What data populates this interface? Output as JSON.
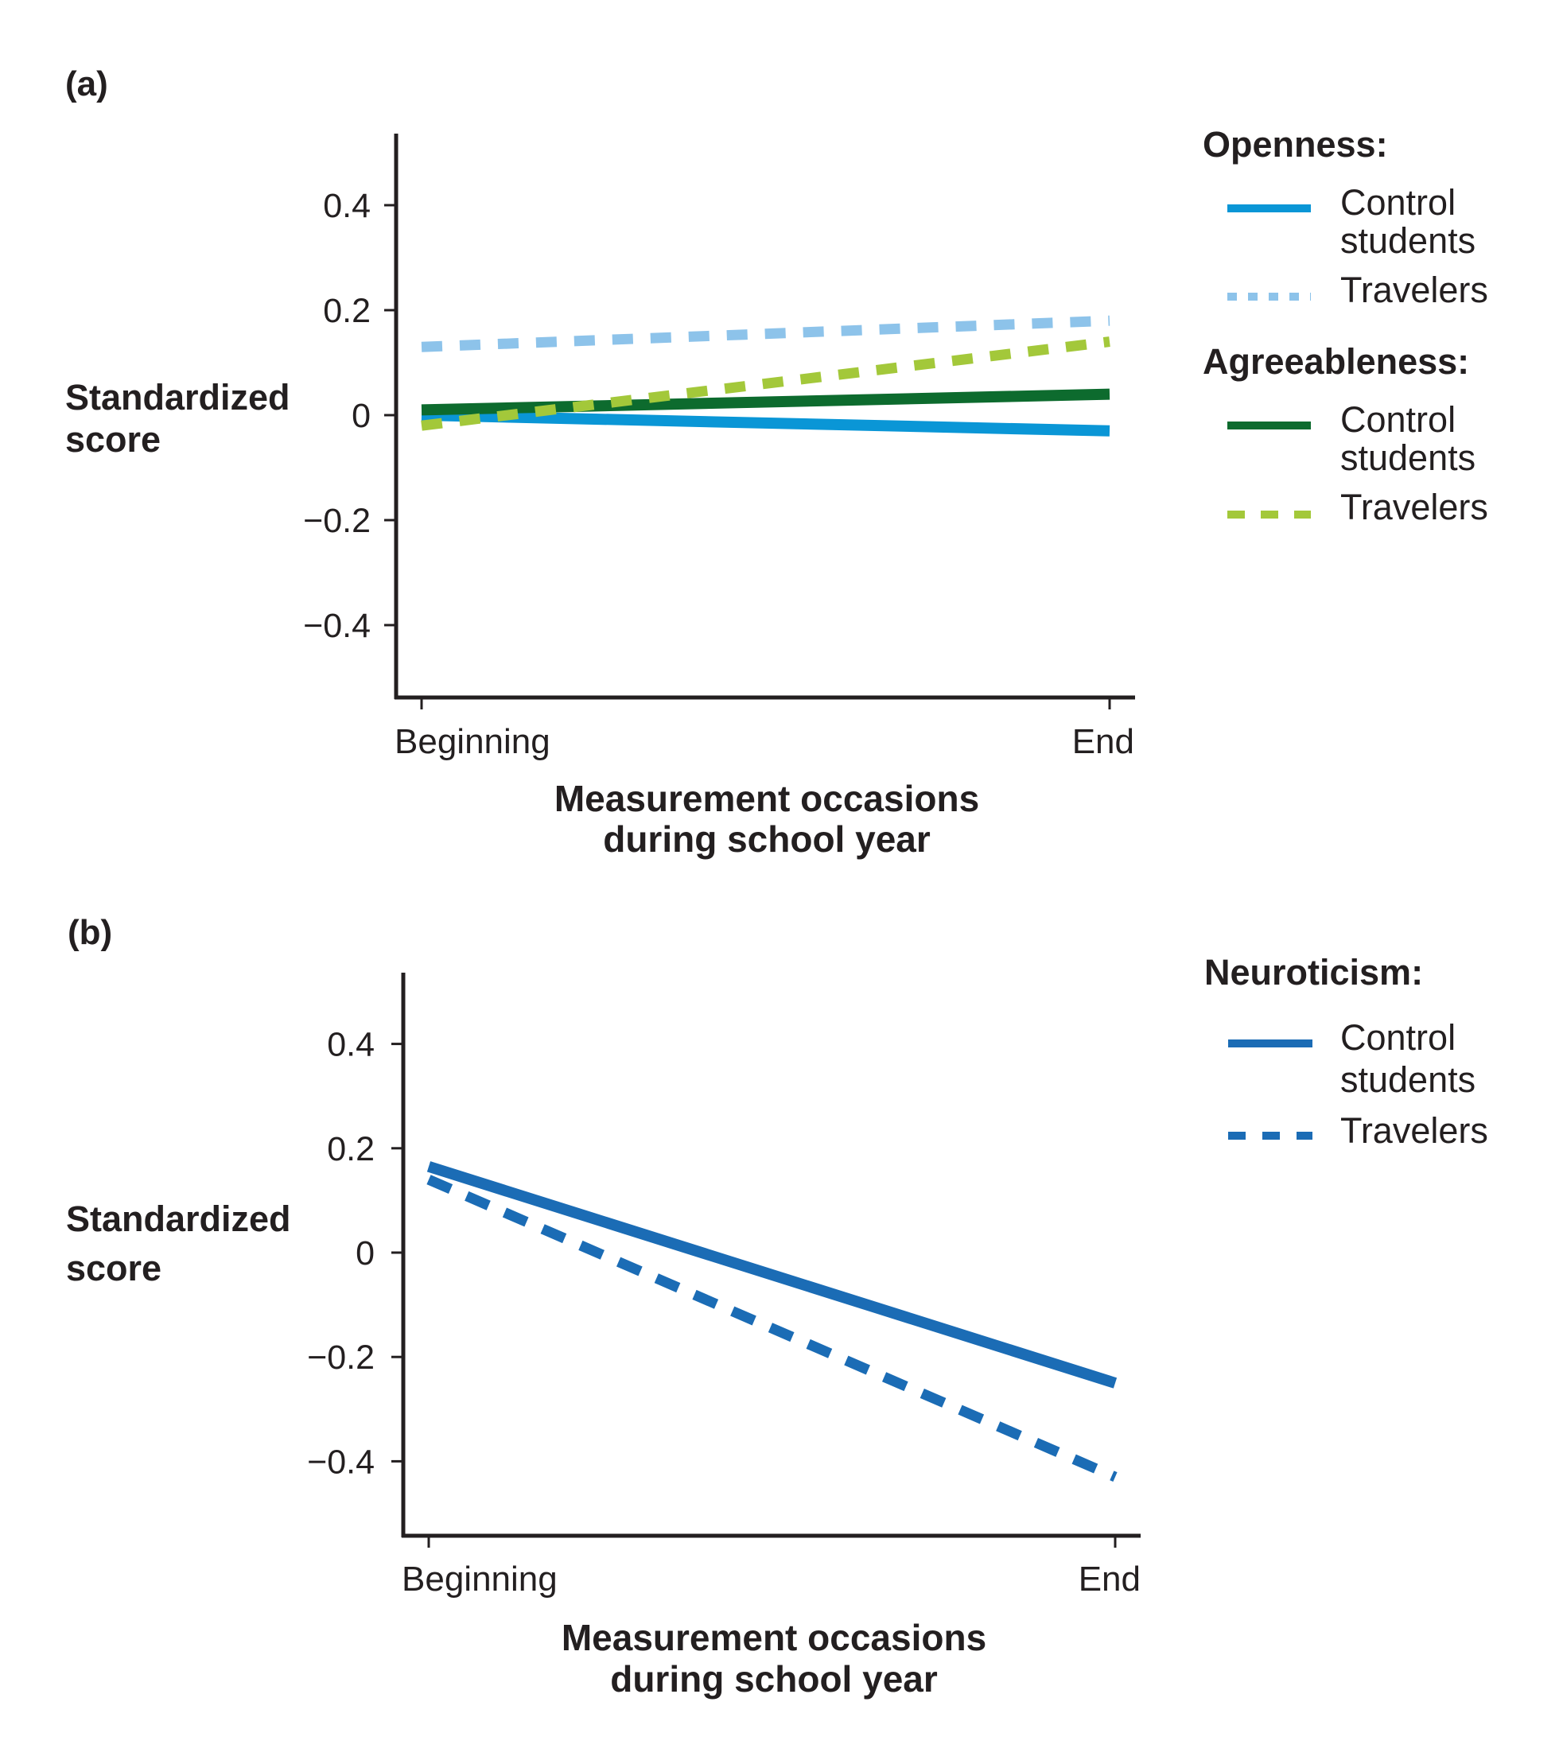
{
  "chart_data": [
    {
      "type": "line",
      "panel_label": "(a)",
      "title": "",
      "xlabel": [
        "Measurement occasions",
        "during school year"
      ],
      "ylabel": [
        "Standardized",
        "score"
      ],
      "categories": [
        "Beginning",
        "End"
      ],
      "yticks": [
        0.4,
        0.2,
        0,
        -0.2,
        -0.4
      ],
      "ytick_labels": [
        "0.4",
        "0.2",
        "0",
        "−0.2",
        "−0.4"
      ],
      "ylim": [
        -0.55,
        0.54
      ],
      "grid": false,
      "legend_position": "right",
      "legend_groups": [
        {
          "title": "Openness:",
          "items": [
            {
              "series": "openness_control",
              "label_lines": [
                "Control",
                "students"
              ]
            },
            {
              "series": "openness_travelers",
              "label_lines": [
                "Travelers"
              ]
            }
          ]
        },
        {
          "title": "Agreeableness:",
          "items": [
            {
              "series": "agreeableness_control",
              "label_lines": [
                "Control",
                "students"
              ]
            },
            {
              "series": "agreeableness_travelers",
              "label_lines": [
                "Travelers"
              ]
            }
          ]
        }
      ],
      "series": [
        {
          "id": "openness_control",
          "name": "Openness: Control students",
          "values": [
            0.0,
            -0.03
          ],
          "color": "#0a96d6",
          "style": "solid"
        },
        {
          "id": "openness_travelers",
          "name": "Openness: Travelers",
          "values": [
            0.13,
            0.18
          ],
          "color": "#8dc3ea",
          "style": "dashed"
        },
        {
          "id": "agreeableness_control",
          "name": "Agreeableness: Control students",
          "values": [
            0.01,
            0.04
          ],
          "color": "#0d6b2e",
          "style": "solid"
        },
        {
          "id": "agreeableness_travelers",
          "name": "Agreeableness: Travelers",
          "values": [
            -0.02,
            0.14
          ],
          "color": "#a3c83a",
          "style": "dashed"
        }
      ]
    },
    {
      "type": "line",
      "panel_label": "(b)",
      "title": "",
      "xlabel": [
        "Measurement occasions",
        "during school year"
      ],
      "ylabel": [
        "Standardized",
        "score"
      ],
      "categories": [
        "Beginning",
        "End"
      ],
      "yticks": [
        0.4,
        0.2,
        0,
        -0.2,
        -0.4
      ],
      "ytick_labels": [
        "0.4",
        "0.2",
        "0",
        "−0.2",
        "−0.4"
      ],
      "ylim": [
        -0.54,
        0.54
      ],
      "grid": false,
      "legend_position": "right",
      "legend_groups": [
        {
          "title": "Neuroticism:",
          "items": [
            {
              "series": "neuroticism_control",
              "label_lines": [
                "Control",
                "students"
              ]
            },
            {
              "series": "neuroticism_travelers",
              "label_lines": [
                "Travelers"
              ]
            }
          ]
        }
      ],
      "series": [
        {
          "id": "neuroticism_control",
          "name": "Neuroticism: Control students",
          "values": [
            0.165,
            -0.25
          ],
          "color": "#1b6cb5",
          "style": "solid"
        },
        {
          "id": "neuroticism_travelers",
          "name": "Neuroticism: Travelers",
          "values": [
            0.14,
            -0.43
          ],
          "color": "#1b6cb5",
          "style": "dashed"
        }
      ]
    }
  ]
}
